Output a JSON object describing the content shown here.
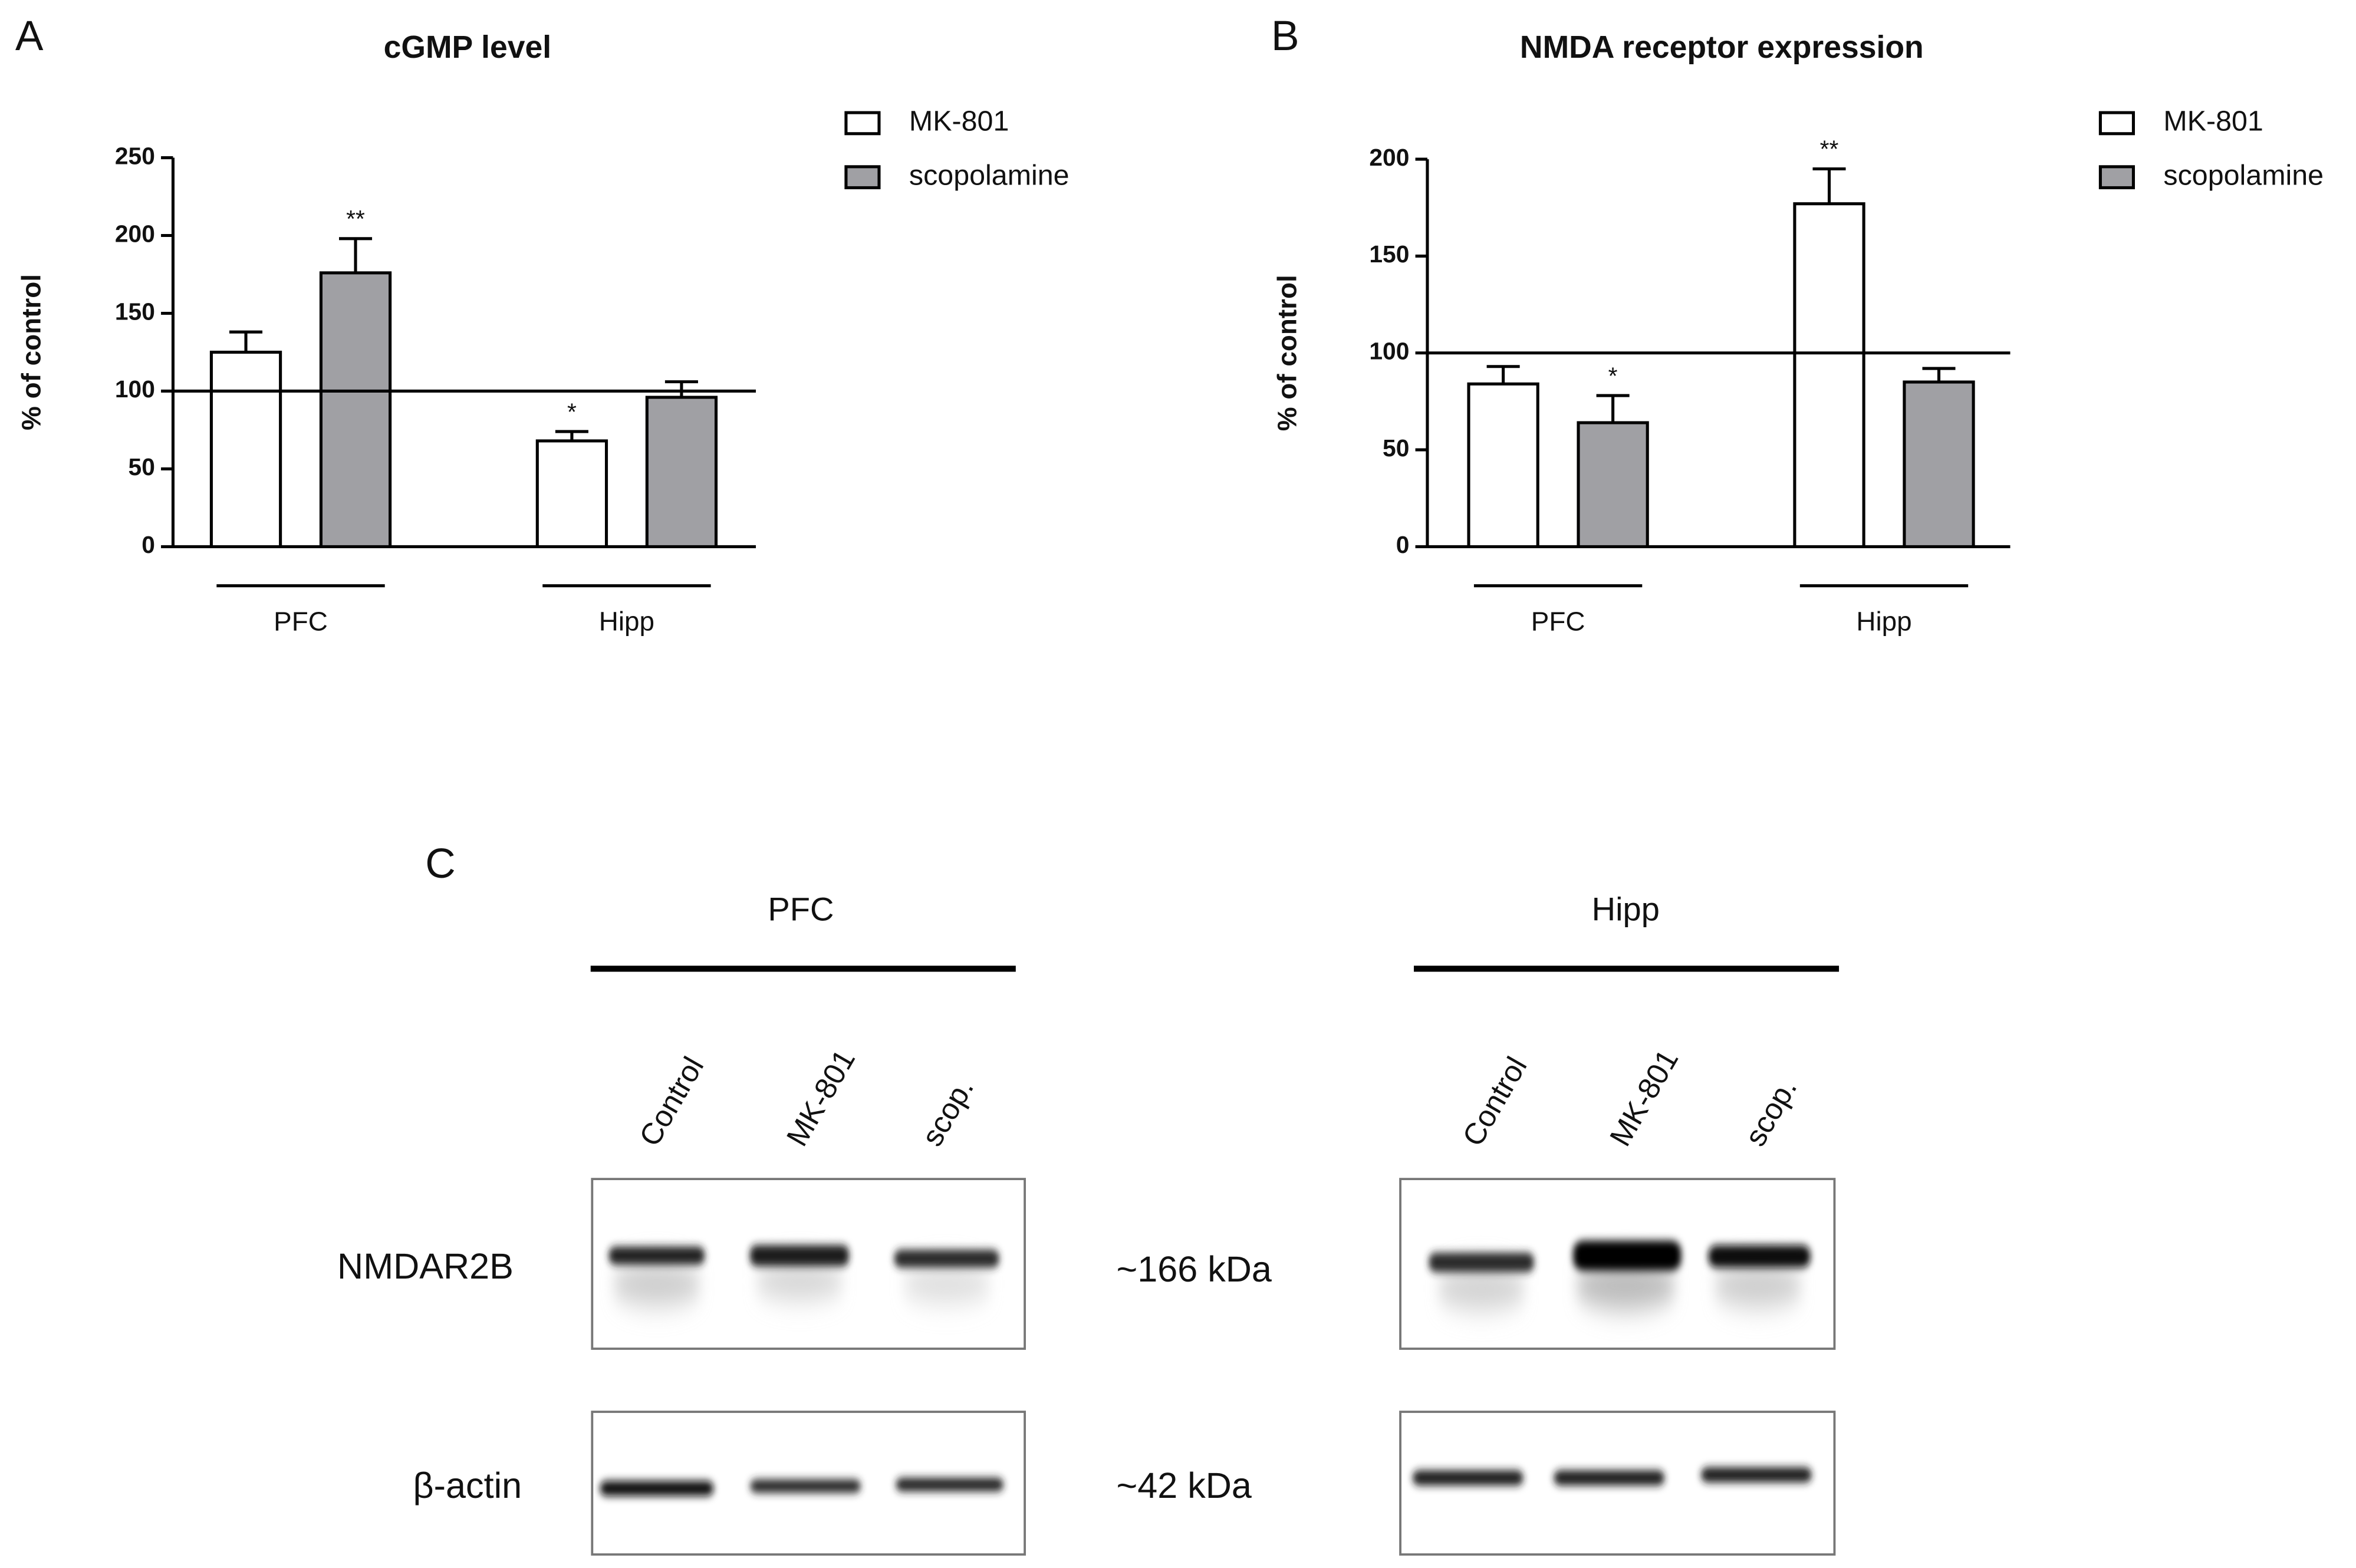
{
  "chart_data": [
    {
      "type": "bar",
      "panel": "A",
      "title": "cGMP level",
      "y_label": "% of control",
      "categories": [
        "PFC",
        "Hipp"
      ],
      "ylim": [
        0,
        250
      ],
      "yticks": [
        0,
        50,
        100,
        150,
        200,
        250
      ],
      "reference_line": 100,
      "series": [
        {
          "name": "MK-801",
          "color": "#ffffff",
          "values": [
            125,
            68
          ],
          "errors": [
            13,
            6
          ],
          "significance": [
            null,
            "*"
          ]
        },
        {
          "name": "scopolamine",
          "color": "#a0a0a4",
          "values": [
            176,
            96
          ],
          "errors": [
            22,
            10
          ],
          "significance": [
            "**",
            null
          ]
        }
      ]
    },
    {
      "type": "bar",
      "panel": "B",
      "title": "NMDA receptor expression",
      "y_label": "% of control",
      "categories": [
        "PFC",
        "Hipp"
      ],
      "ylim": [
        0,
        200
      ],
      "yticks": [
        0,
        50,
        100,
        150,
        200
      ],
      "reference_line": 100,
      "series": [
        {
          "name": "MK-801",
          "color": "#ffffff",
          "values": [
            84,
            177
          ],
          "errors": [
            9,
            18
          ],
          "significance": [
            null,
            "**"
          ]
        },
        {
          "name": "scopolamine",
          "color": "#a0a0a4",
          "values": [
            64,
            85
          ],
          "errors": [
            14,
            7
          ],
          "significance": [
            "*",
            null
          ]
        }
      ]
    }
  ],
  "blot": {
    "panel": "C",
    "groups": [
      {
        "name": "PFC",
        "lanes": [
          "Control",
          "MK-801",
          "scop."
        ]
      },
      {
        "name": "Hipp",
        "lanes": [
          "Control",
          "MK-801",
          "scop."
        ]
      }
    ],
    "rows": [
      {
        "name": "NMDAR2B",
        "size": "~166 kDa"
      },
      {
        "name": "β-actin",
        "size": "~42 kDa"
      }
    ]
  }
}
